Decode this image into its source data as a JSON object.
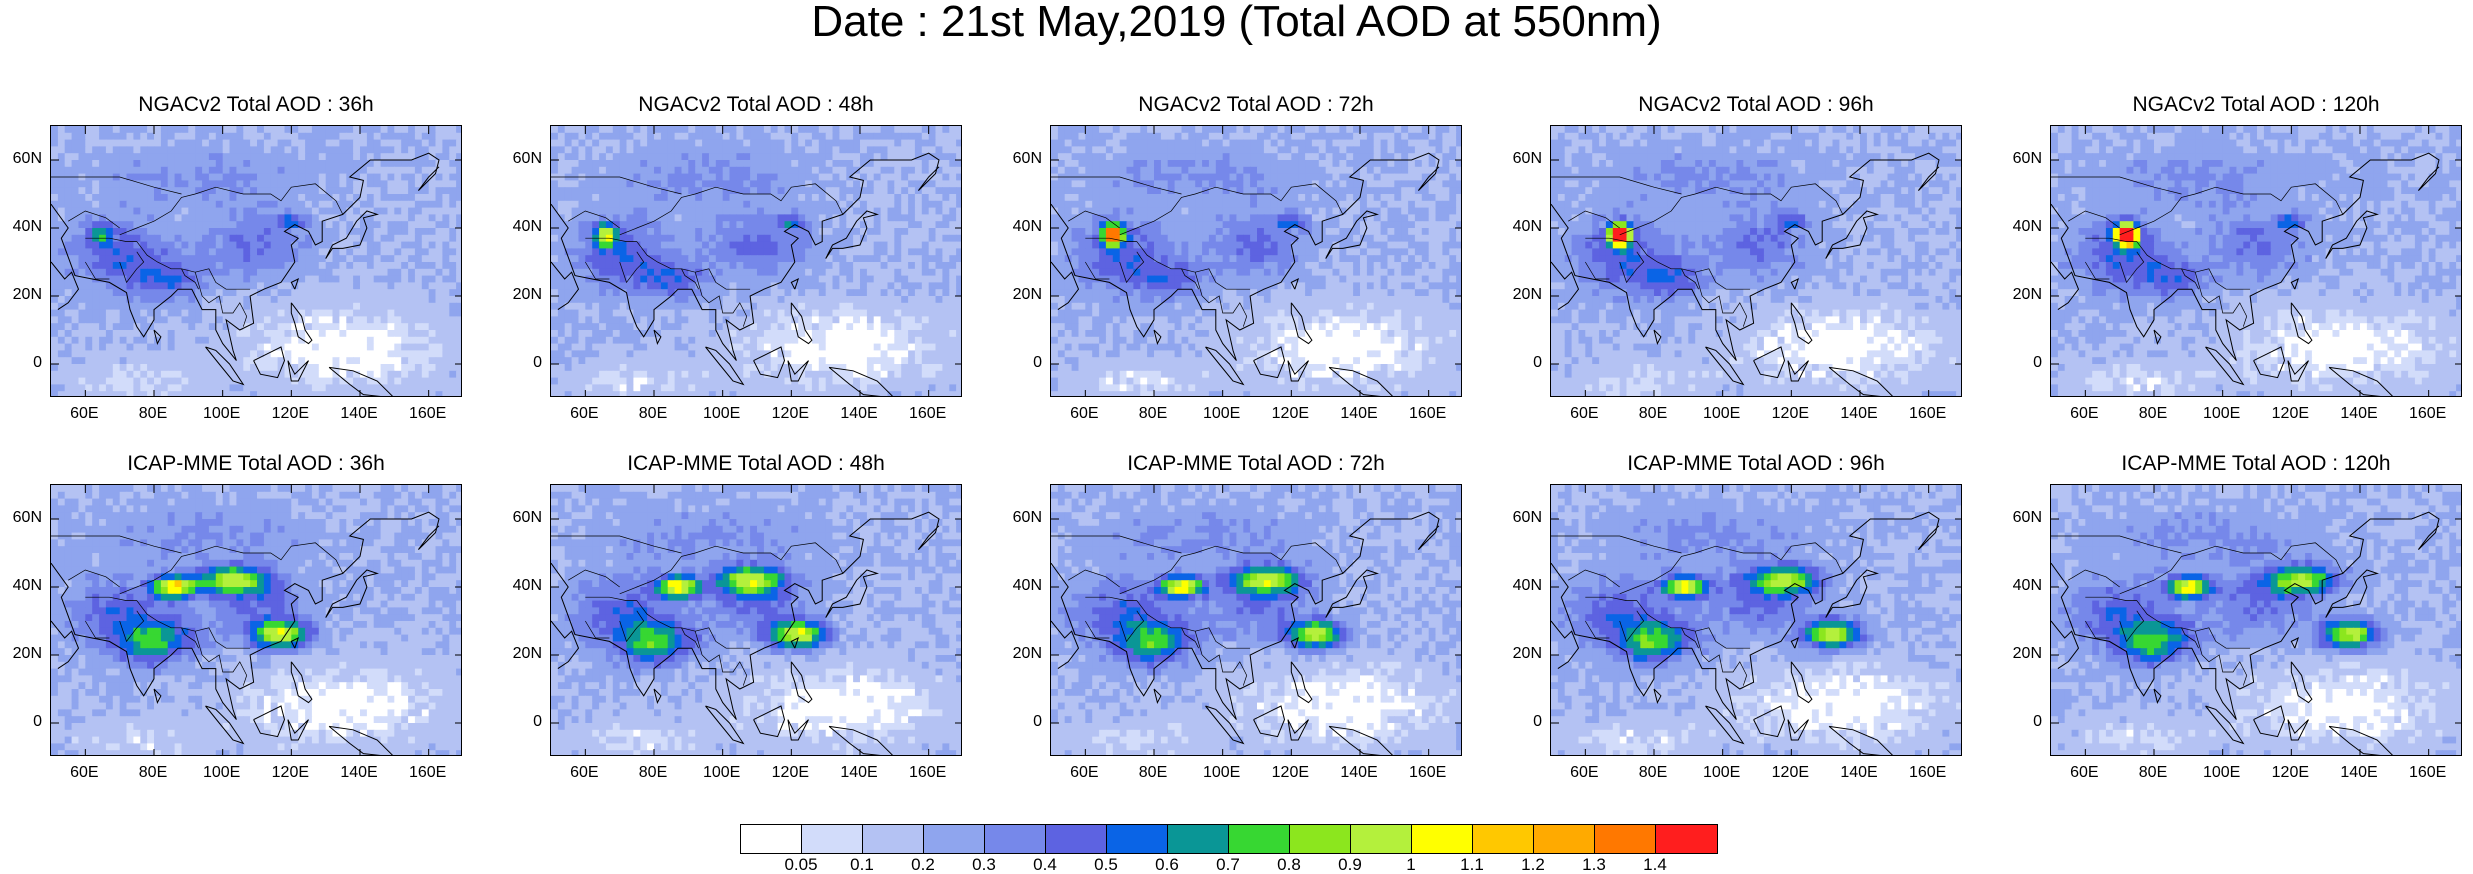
{
  "title": "Date : 21st May,2019 (Total AOD at 550nm)",
  "panels": [
    {
      "title": "NGACv2 Total AOD : 36h",
      "model": "NGACv2",
      "lead": "36h"
    },
    {
      "title": "NGACv2 Total AOD : 48h",
      "model": "NGACv2",
      "lead": "48h"
    },
    {
      "title": "NGACv2 Total AOD : 72h",
      "model": "NGACv2",
      "lead": "72h"
    },
    {
      "title": "NGACv2 Total AOD : 96h",
      "model": "NGACv2",
      "lead": "96h"
    },
    {
      "title": "NGACv2 Total AOD : 120h",
      "model": "NGACv2",
      "lead": "120h"
    },
    {
      "title": "ICAP-MME Total AOD : 36h",
      "model": "ICAP-MME",
      "lead": "36h"
    },
    {
      "title": "ICAP-MME Total AOD : 48h",
      "model": "ICAP-MME",
      "lead": "48h"
    },
    {
      "title": "ICAP-MME Total AOD : 72h",
      "model": "ICAP-MME",
      "lead": "72h"
    },
    {
      "title": "ICAP-MME Total AOD : 96h",
      "model": "ICAP-MME",
      "lead": "96h"
    },
    {
      "title": "ICAP-MME Total AOD : 120h",
      "model": "ICAP-MME",
      "lead": "120h"
    }
  ],
  "axes": {
    "x_ticks": [
      "60E",
      "80E",
      "100E",
      "120E",
      "140E",
      "160E"
    ],
    "x_tick_values": [
      60,
      80,
      100,
      120,
      140,
      160
    ],
    "y_ticks": [
      "60N",
      "40N",
      "20N",
      "0"
    ],
    "y_tick_values": [
      60,
      40,
      20,
      0
    ],
    "lon_range": [
      50,
      170
    ],
    "lat_range": [
      -10,
      70
    ]
  },
  "colorbar": {
    "colors": [
      "#ffffff",
      "#d2dcfa",
      "#b4c2f3",
      "#8fa5ee",
      "#7688ea",
      "#5d63e1",
      "#0a64e6",
      "#0a9696",
      "#37d732",
      "#8ce61e",
      "#b4f03c",
      "#ffff00",
      "#ffc800",
      "#ffaa00",
      "#ff7800",
      "#ff1e1e"
    ],
    "labels": [
      "0.05",
      "0.1",
      "0.2",
      "0.3",
      "0.4",
      "0.5",
      "0.6",
      "0.7",
      "0.8",
      "0.9",
      "1",
      "1.1",
      "1.2",
      "1.3",
      "1.4"
    ]
  }
}
